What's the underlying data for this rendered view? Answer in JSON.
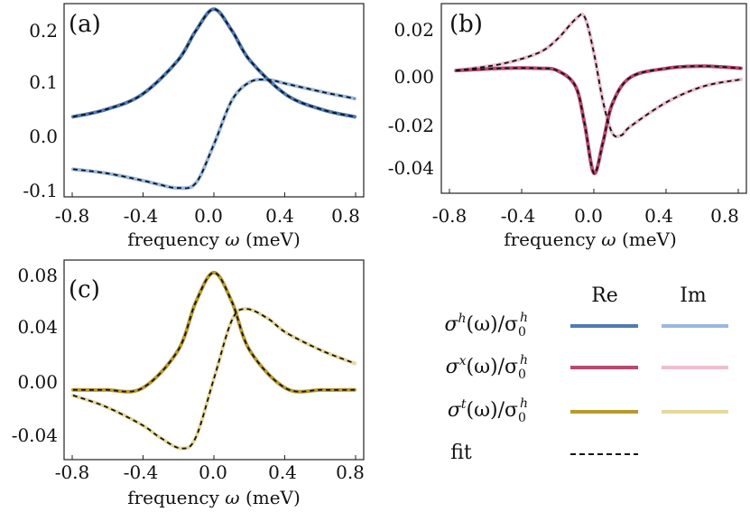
{
  "panels": [
    {
      "label": "(a)",
      "xlabel_text": "frequency",
      "xlabel_sym": "ω",
      "xlabel_unit": "(meV)",
      "yticks": [
        "0.2",
        "0.1",
        "0.0",
        "-0.1"
      ],
      "xticks": [
        "-0.8",
        "-0.4",
        "0.0",
        "0.4",
        "0.8"
      ]
    },
    {
      "label": "(b)",
      "xlabel_text": "frequency",
      "xlabel_sym": "ω",
      "xlabel_unit": "(meV)",
      "yticks": [
        "0.02",
        "0.00",
        "-0.02",
        "-0.04"
      ],
      "xticks": [
        "-0.8",
        "-0.4",
        "0.0",
        "0.4",
        "0.8"
      ]
    },
    {
      "label": "(c)",
      "xlabel_text": "frequency",
      "xlabel_sym": "ω",
      "xlabel_unit": "(meV)",
      "yticks": [
        "0.08",
        "0.04",
        "0.00",
        "-0.04"
      ],
      "xticks": [
        "-0.8",
        "-0.4",
        "0.0",
        "0.4",
        "0.8"
      ]
    }
  ],
  "legend": {
    "col_re": "Re",
    "col_im": "Im",
    "rows": [
      {
        "sym": "σ",
        "sup": "h",
        "arg": "(ω)/σ",
        "sub0": "0",
        "sup0": "h",
        "re_color": "#4f7ab6",
        "im_color": "#9ab8de"
      },
      {
        "sym": "σ",
        "sup": "x",
        "arg": "(ω)/σ",
        "sub0": "0",
        "sup0": "h",
        "re_color": "#b8486f",
        "im_color": "#ecbfd0"
      },
      {
        "sym": "σ",
        "sup": "t",
        "arg": "(ω)/σ",
        "sub0": "0",
        "sup0": "h",
        "re_color": "#b8992e",
        "im_color": "#e6d99c"
      }
    ],
    "fit_label": "fit"
  },
  "chart_data": [
    {
      "type": "line",
      "xlabel": "frequency ω (meV)",
      "xlim": [
        -0.83,
        0.83
      ],
      "ylim": [
        -0.115,
        0.235
      ],
      "series": [
        {
          "name": "Re σh(ω)/σ0h",
          "color": "#4f7ab6",
          "x": [
            -0.78,
            -0.6,
            -0.4,
            -0.2,
            -0.1,
            0.0,
            0.1,
            0.2,
            0.4,
            0.6,
            0.78
          ],
          "y": [
            0.03,
            0.043,
            0.07,
            0.132,
            0.186,
            0.225,
            0.186,
            0.132,
            0.07,
            0.043,
            0.03
          ]
        },
        {
          "name": "Im σh(ω)/σ0h",
          "color": "#9ab8de",
          "x": [
            -0.78,
            -0.6,
            -0.4,
            -0.3,
            -0.2,
            -0.1,
            0.0,
            0.1,
            0.2,
            0.3,
            0.4,
            0.6,
            0.78
          ],
          "y": [
            -0.065,
            -0.072,
            -0.085,
            -0.093,
            -0.099,
            -0.09,
            -0.02,
            0.06,
            0.093,
            0.097,
            0.09,
            0.075,
            0.063
          ]
        }
      ]
    },
    {
      "type": "line",
      "xlabel": "frequency ω (meV)",
      "xlim": [
        -0.83,
        0.83
      ],
      "ylim": [
        -0.053,
        0.032
      ],
      "series": [
        {
          "name": "Re σx(ω)/σ0h",
          "color": "#b8486f",
          "x": [
            -0.75,
            -0.5,
            -0.3,
            -0.2,
            -0.1,
            -0.05,
            0.0,
            0.05,
            0.1,
            0.2,
            0.4,
            0.6,
            0.8
          ],
          "y": [
            0.002,
            0.003,
            0.003,
            0.002,
            -0.005,
            -0.022,
            -0.044,
            -0.03,
            -0.013,
            -0.001,
            0.003,
            0.004,
            0.003
          ]
        },
        {
          "name": "Im σx(ω)/σ0h",
          "color": "#ecbfd0",
          "x": [
            -0.75,
            -0.5,
            -0.3,
            -0.2,
            -0.1,
            -0.05,
            0.0,
            0.05,
            0.1,
            0.15,
            0.2,
            0.4,
            0.6,
            0.8
          ],
          "y": [
            0.002,
            0.005,
            0.01,
            0.016,
            0.025,
            0.026,
            0.01,
            -0.012,
            -0.026,
            -0.027,
            -0.023,
            -0.012,
            -0.005,
            -0.002
          ]
        }
      ]
    },
    {
      "type": "line",
      "xlabel": "frequency ω (meV)",
      "xlim": [
        -0.83,
        0.83
      ],
      "ylim": [
        -0.058,
        0.085
      ],
      "series": [
        {
          "name": "Re σt(ω)/σ0h",
          "color": "#b8992e",
          "x": [
            -0.78,
            -0.6,
            -0.4,
            -0.2,
            -0.1,
            0.0,
            0.1,
            0.2,
            0.4,
            0.6,
            0.78
          ],
          "y": [
            -0.008,
            -0.008,
            -0.007,
            0.02,
            0.055,
            0.076,
            0.055,
            0.02,
            -0.007,
            -0.008,
            -0.008
          ]
        },
        {
          "name": "Im σt(ω)/σ0h",
          "color": "#e6d99c",
          "x": [
            -0.78,
            -0.6,
            -0.4,
            -0.3,
            -0.18,
            -0.1,
            0.0,
            0.1,
            0.18,
            0.3,
            0.4,
            0.6,
            0.78
          ],
          "y": [
            -0.012,
            -0.02,
            -0.033,
            -0.042,
            -0.05,
            -0.042,
            0.0,
            0.042,
            0.05,
            0.043,
            0.033,
            0.02,
            0.011
          ]
        }
      ]
    }
  ]
}
